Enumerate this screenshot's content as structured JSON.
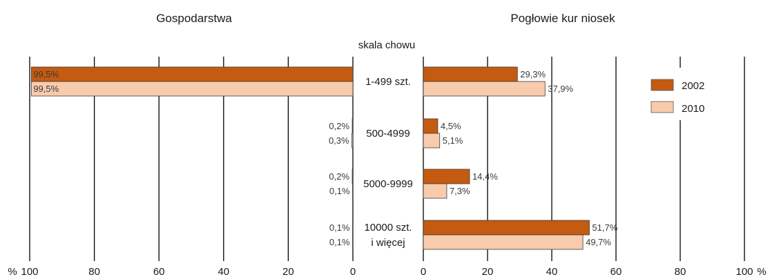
{
  "chart_data": [
    {
      "type": "bar",
      "orientation": "horizontal",
      "direction": "right-to-left",
      "title": "Gospodarstwa",
      "categories": [
        "1-499 szt.",
        "500-4999",
        "5000-9999",
        "10000 szt. i więcej"
      ],
      "series": [
        {
          "name": "2002",
          "values": [
            99.5,
            0.2,
            0.2,
            0.1
          ],
          "labels": [
            "99,5%",
            "0,2%",
            "0,2%",
            "0,1%"
          ],
          "color": "#c55a11"
        },
        {
          "name": "2010",
          "values": [
            99.5,
            0.3,
            0.1,
            0.1
          ],
          "labels": [
            "99,5%",
            "0,3%",
            "0,1%",
            "0,1%"
          ],
          "color": "#f8cbad"
        }
      ],
      "xlim": [
        0,
        100
      ],
      "xticks": [
        "100",
        "80",
        "60",
        "40",
        "20",
        "0"
      ],
      "axis_unit": "%",
      "grid": true
    },
    {
      "type": "bar",
      "orientation": "horizontal",
      "direction": "left-to-right",
      "title": "Pogłowie kur niosek",
      "categories": [
        "1-499 szt.",
        "500-4999",
        "5000-9999",
        "10000 szt. i więcej"
      ],
      "series": [
        {
          "name": "2002",
          "values": [
            29.3,
            4.5,
            14.4,
            51.7
          ],
          "labels": [
            "29,3%",
            "4,5%",
            "14,4%",
            "51,7%"
          ],
          "color": "#c55a11"
        },
        {
          "name": "2010",
          "values": [
            37.9,
            5.1,
            7.3,
            49.7
          ],
          "labels": [
            "37,9%",
            "5,1%",
            "7,3%",
            "49,7%"
          ],
          "color": "#f8cbad"
        }
      ],
      "xlim": [
        0,
        100
      ],
      "xticks": [
        "0",
        "20",
        "40",
        "60",
        "80",
        "100"
      ],
      "axis_unit": "%",
      "grid": true,
      "legend": "top-right"
    }
  ],
  "center_header": "skala chowu",
  "category_lines": [
    [
      "1-499 szt."
    ],
    [
      "500-4999"
    ],
    [
      "5000-9999"
    ],
    [
      "10000 szt.",
      "i więcej"
    ]
  ],
  "legend": [
    {
      "label": "2002",
      "color": "#c55a11"
    },
    {
      "label": "2010",
      "color": "#f8cbad"
    }
  ]
}
